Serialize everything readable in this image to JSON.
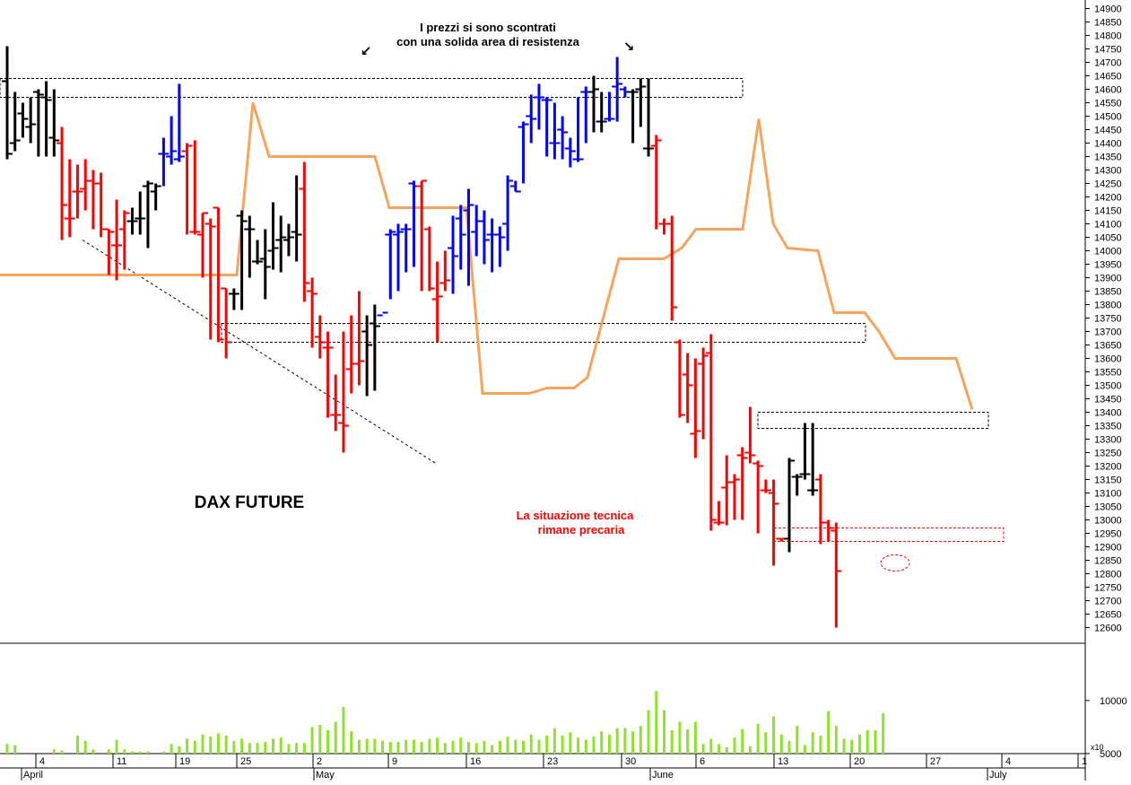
{
  "chart_data": {
    "type": "ohlc",
    "title": "DAX FUTURE",
    "annotations": {
      "resistance_line1": "I prezzi si sono scontrati",
      "resistance_line2": "con una solida area di resistenza",
      "situation_line1": "La situazione tecnica",
      "situation_line2": "rimane precaria"
    },
    "colors": {
      "up": "#0000ff",
      "down": "#ff0000",
      "neutral": "#000000",
      "line": "#f7a35c",
      "volume": "#8ee22b"
    },
    "y_axis": {
      "ylim": [
        12600,
        14900
      ],
      "ticks": [
        12600,
        12650,
        12700,
        12750,
        12800,
        12850,
        12900,
        12950,
        13000,
        13050,
        13100,
        13150,
        13200,
        13250,
        13300,
        13350,
        13400,
        13450,
        13500,
        13550,
        13600,
        13650,
        13700,
        13750,
        13800,
        13850,
        13900,
        13950,
        14000,
        14050,
        14100,
        14150,
        14200,
        14250,
        14300,
        14350,
        14400,
        14450,
        14500,
        14550,
        14600,
        14650,
        14700,
        14750,
        14800,
        14850,
        14900
      ]
    },
    "volume_axis": {
      "ticks": [
        5000,
        10000
      ],
      "multiplier_label": "x10"
    },
    "x_axis": {
      "day_ticks": [
        "4",
        "11",
        "19",
        "25",
        "2",
        "9",
        "16",
        "23",
        "30",
        "6",
        "13",
        "20",
        "27",
        "4",
        "1"
      ],
      "month_labels": [
        "April",
        "May",
        "June",
        "July"
      ]
    },
    "bars": [
      {
        "o": 14630,
        "h": 14760,
        "l": 14340,
        "c": 14360,
        "color": "neutral"
      },
      {
        "o": 14400,
        "h": 14590,
        "l": 14370,
        "c": 14410,
        "color": "neutral"
      },
      {
        "o": 14510,
        "h": 14550,
        "l": 14420,
        "c": 14490,
        "color": "neutral"
      },
      {
        "o": 14460,
        "h": 14570,
        "l": 14400,
        "c": 14470,
        "color": "neutral"
      },
      {
        "o": 14590,
        "h": 14600,
        "l": 14350,
        "c": 14580,
        "color": "neutral"
      },
      {
        "o": 14570,
        "h": 14630,
        "l": 14350,
        "c": 14560,
        "color": "neutral"
      },
      {
        "o": 14420,
        "h": 14600,
        "l": 14350,
        "c": 14410,
        "color": "neutral"
      },
      {
        "o": 14400,
        "h": 14460,
        "l": 14040,
        "c": 14170,
        "color": "down"
      },
      {
        "o": 14120,
        "h": 14340,
        "l": 14050,
        "c": 14120,
        "color": "down"
      },
      {
        "o": 14220,
        "h": 14320,
        "l": 14120,
        "c": 14220,
        "color": "down"
      },
      {
        "o": 14230,
        "h": 14340,
        "l": 14150,
        "c": 14260,
        "color": "down"
      },
      {
        "o": 14260,
        "h": 14300,
        "l": 14080,
        "c": 14250,
        "color": "down"
      },
      {
        "o": 14250,
        "h": 14290,
        "l": 14050,
        "c": 14080,
        "color": "down"
      },
      {
        "o": 14080,
        "h": 14080,
        "l": 13910,
        "c": 14070,
        "color": "down"
      },
      {
        "o": 14020,
        "h": 14190,
        "l": 13890,
        "c": 14020,
        "color": "down"
      },
      {
        "o": 14080,
        "h": 14150,
        "l": 13930,
        "c": 14140,
        "color": "down"
      },
      {
        "o": 14110,
        "h": 14160,
        "l": 14060,
        "c": 14110,
        "color": "neutral"
      },
      {
        "o": 14120,
        "h": 14220,
        "l": 14060,
        "c": 14120,
        "color": "neutral"
      },
      {
        "o": 14240,
        "h": 14260,
        "l": 14010,
        "c": 14250,
        "color": "neutral"
      },
      {
        "o": 14220,
        "h": 14250,
        "l": 14150,
        "c": 14240,
        "color": "neutral"
      },
      {
        "o": 14360,
        "h": 14420,
        "l": 14240,
        "c": 14360,
        "color": "up"
      },
      {
        "o": 14350,
        "h": 14500,
        "l": 14320,
        "c": 14370,
        "color": "up"
      },
      {
        "o": 14340,
        "h": 14620,
        "l": 14330,
        "c": 14350,
        "color": "up"
      },
      {
        "o": 14370,
        "h": 14400,
        "l": 14060,
        "c": 14390,
        "color": "down"
      },
      {
        "o": 14070,
        "h": 14410,
        "l": 14060,
        "c": 14070,
        "color": "down"
      },
      {
        "o": 14060,
        "h": 14140,
        "l": 13900,
        "c": 14140,
        "color": "down"
      },
      {
        "o": 14100,
        "h": 14120,
        "l": 13670,
        "c": 14090,
        "color": "down"
      },
      {
        "o": 14160,
        "h": 14160,
        "l": 13660,
        "c": 13670,
        "color": "down"
      },
      {
        "o": 13860,
        "h": 13860,
        "l": 13600,
        "c": 13660,
        "color": "down"
      },
      {
        "o": 13840,
        "h": 13860,
        "l": 13780,
        "c": 13840,
        "color": "neutral"
      },
      {
        "o": 14130,
        "h": 14150,
        "l": 13780,
        "c": 14110,
        "color": "neutral"
      },
      {
        "o": 14080,
        "h": 14130,
        "l": 13900,
        "c": 14080,
        "color": "neutral"
      },
      {
        "o": 13960,
        "h": 14040,
        "l": 13950,
        "c": 13960,
        "color": "neutral"
      },
      {
        "o": 13970,
        "h": 14080,
        "l": 13820,
        "c": 13940,
        "color": "neutral"
      },
      {
        "o": 14000,
        "h": 14180,
        "l": 13930,
        "c": 14010,
        "color": "neutral"
      },
      {
        "o": 14040,
        "h": 14130,
        "l": 13920,
        "c": 14050,
        "color": "neutral"
      },
      {
        "o": 14040,
        "h": 14100,
        "l": 13980,
        "c": 14050,
        "color": "neutral"
      },
      {
        "o": 14070,
        "h": 14280,
        "l": 13960,
        "c": 14060,
        "color": "neutral"
      },
      {
        "o": 14230,
        "h": 14330,
        "l": 13810,
        "c": 13880,
        "color": "down"
      },
      {
        "o": 13850,
        "h": 13900,
        "l": 13640,
        "c": 13840,
        "color": "down"
      },
      {
        "o": 13680,
        "h": 13760,
        "l": 13600,
        "c": 13660,
        "color": "down"
      },
      {
        "o": 13640,
        "h": 13700,
        "l": 13380,
        "c": 13640,
        "color": "down"
      },
      {
        "o": 13390,
        "h": 13540,
        "l": 13330,
        "c": 13390,
        "color": "down"
      },
      {
        "o": 13360,
        "h": 13700,
        "l": 13250,
        "c": 13350,
        "color": "down"
      },
      {
        "o": 13560,
        "h": 13760,
        "l": 13470,
        "c": 13580,
        "color": "down"
      },
      {
        "o": 13580,
        "h": 13850,
        "l": 13500,
        "c": 13590,
        "color": "down"
      },
      {
        "o": 13700,
        "h": 13760,
        "l": 13460,
        "c": 13650,
        "color": "neutral"
      },
      {
        "o": 13730,
        "h": 13800,
        "l": 13480,
        "c": 13720,
        "color": "neutral"
      },
      {
        "o": 13760,
        "h": 13760,
        "l": 13760,
        "c": 13770,
        "color": "up"
      },
      {
        "o": 14060,
        "h": 14080,
        "l": 13820,
        "c": 14070,
        "color": "up"
      },
      {
        "o": 14060,
        "h": 14100,
        "l": 13850,
        "c": 14070,
        "color": "up"
      },
      {
        "o": 14080,
        "h": 14100,
        "l": 13920,
        "c": 14080,
        "color": "up"
      },
      {
        "o": 14250,
        "h": 14260,
        "l": 13940,
        "c": 14240,
        "color": "up"
      },
      {
        "o": 14240,
        "h": 14260,
        "l": 13850,
        "c": 14260,
        "color": "down"
      },
      {
        "o": 14080,
        "h": 14090,
        "l": 13850,
        "c": 13860,
        "color": "down"
      },
      {
        "o": 13820,
        "h": 13960,
        "l": 13660,
        "c": 13830,
        "color": "down"
      },
      {
        "o": 13880,
        "h": 14000,
        "l": 13850,
        "c": 13890,
        "color": "down"
      },
      {
        "o": 14010,
        "h": 14130,
        "l": 13840,
        "c": 13980,
        "color": "up"
      },
      {
        "o": 14120,
        "h": 14170,
        "l": 13930,
        "c": 14060,
        "color": "up"
      },
      {
        "o": 14150,
        "h": 14230,
        "l": 13870,
        "c": 14170,
        "color": "up"
      },
      {
        "o": 14070,
        "h": 14170,
        "l": 13980,
        "c": 14110,
        "color": "up"
      },
      {
        "o": 14110,
        "h": 14150,
        "l": 13950,
        "c": 14040,
        "color": "up"
      },
      {
        "o": 14060,
        "h": 14120,
        "l": 13920,
        "c": 14060,
        "color": "up"
      },
      {
        "o": 14060,
        "h": 14090,
        "l": 13940,
        "c": 14050,
        "color": "up"
      },
      {
        "o": 14100,
        "h": 14280,
        "l": 14000,
        "c": 14260,
        "color": "up"
      },
      {
        "o": 14240,
        "h": 14260,
        "l": 14220,
        "c": 14220,
        "color": "up"
      },
      {
        "o": 14460,
        "h": 14480,
        "l": 14250,
        "c": 14470,
        "color": "up"
      },
      {
        "o": 14500,
        "h": 14580,
        "l": 14400,
        "c": 14490,
        "color": "up"
      },
      {
        "o": 14570,
        "h": 14620,
        "l": 14450,
        "c": 14570,
        "color": "up"
      },
      {
        "o": 14560,
        "h": 14570,
        "l": 14350,
        "c": 14560,
        "color": "up"
      },
      {
        "o": 14400,
        "h": 14550,
        "l": 14340,
        "c": 14400,
        "color": "up"
      },
      {
        "o": 14450,
        "h": 14500,
        "l": 14340,
        "c": 14440,
        "color": "up"
      },
      {
        "o": 14380,
        "h": 14420,
        "l": 14310,
        "c": 14370,
        "color": "up"
      },
      {
        "o": 14340,
        "h": 14570,
        "l": 14330,
        "c": 14340,
        "color": "up"
      },
      {
        "o": 14590,
        "h": 14610,
        "l": 14400,
        "c": 14590,
        "color": "up"
      },
      {
        "o": 14590,
        "h": 14650,
        "l": 14440,
        "c": 14600,
        "color": "neutral"
      },
      {
        "o": 14480,
        "h": 14590,
        "l": 14440,
        "c": 14480,
        "color": "neutral"
      },
      {
        "o": 14490,
        "h": 14590,
        "l": 14480,
        "c": 14490,
        "color": "up"
      },
      {
        "o": 14610,
        "h": 14720,
        "l": 14480,
        "c": 14620,
        "color": "up"
      },
      {
        "o": 14600,
        "h": 14610,
        "l": 14570,
        "c": 14590,
        "color": "up"
      },
      {
        "o": 14590,
        "h": 14600,
        "l": 14400,
        "c": 14590,
        "color": "neutral"
      },
      {
        "o": 14600,
        "h": 14640,
        "l": 14460,
        "c": 14610,
        "color": "neutral"
      },
      {
        "o": 14380,
        "h": 14640,
        "l": 14350,
        "c": 14380,
        "color": "neutral"
      },
      {
        "o": 14390,
        "h": 14430,
        "l": 14080,
        "c": 14410,
        "color": "down"
      },
      {
        "o": 14100,
        "h": 14120,
        "l": 14060,
        "c": 14100,
        "color": "down"
      },
      {
        "o": 14100,
        "h": 14130,
        "l": 13740,
        "c": 13790,
        "color": "down"
      },
      {
        "o": 13660,
        "h": 13670,
        "l": 13380,
        "c": 13390,
        "color": "down"
      },
      {
        "o": 13540,
        "h": 13620,
        "l": 13360,
        "c": 13500,
        "color": "down"
      },
      {
        "o": 13320,
        "h": 13600,
        "l": 13230,
        "c": 13330,
        "color": "down"
      },
      {
        "o": 13580,
        "h": 13640,
        "l": 13300,
        "c": 13610,
        "color": "down"
      },
      {
        "o": 13620,
        "h": 13690,
        "l": 12960,
        "c": 13000,
        "color": "down"
      },
      {
        "o": 12990,
        "h": 13070,
        "l": 12980,
        "c": 12990,
        "color": "down"
      },
      {
        "o": 13120,
        "h": 13240,
        "l": 12980,
        "c": 13140,
        "color": "down"
      },
      {
        "o": 13140,
        "h": 13170,
        "l": 13000,
        "c": 13150,
        "color": "down"
      },
      {
        "o": 13240,
        "h": 13270,
        "l": 13000,
        "c": 13230,
        "color": "down"
      },
      {
        "o": 13250,
        "h": 13420,
        "l": 13210,
        "c": 13240,
        "color": "down"
      },
      {
        "o": 13210,
        "h": 13220,
        "l": 12950,
        "c": 13200,
        "color": "down"
      },
      {
        "o": 13110,
        "h": 13150,
        "l": 13100,
        "c": 13110,
        "color": "down"
      },
      {
        "o": 13100,
        "h": 13150,
        "l": 12830,
        "c": 13060,
        "color": "down"
      },
      {
        "o": 12930,
        "h": 12930,
        "l": 12920,
        "c": 12930,
        "color": "down"
      },
      {
        "o": 12930,
        "h": 13230,
        "l": 12880,
        "c": 13220,
        "color": "neutral"
      },
      {
        "o": 13160,
        "h": 13170,
        "l": 13090,
        "c": 13160,
        "color": "neutral"
      },
      {
        "o": 13170,
        "h": 13360,
        "l": 13150,
        "c": 13170,
        "color": "neutral"
      },
      {
        "o": 13110,
        "h": 13360,
        "l": 13090,
        "c": 13110,
        "color": "neutral"
      },
      {
        "o": 13150,
        "h": 13170,
        "l": 12910,
        "c": 12990,
        "color": "down"
      },
      {
        "o": 12990,
        "h": 13000,
        "l": 12920,
        "c": 12970,
        "color": "down"
      },
      {
        "o": 12960,
        "h": 12990,
        "l": 12600,
        "c": 12810,
        "color": "down"
      }
    ],
    "line_series": [
      [
        0,
        13910
      ],
      [
        264,
        13910
      ],
      [
        282,
        14550
      ],
      [
        300,
        14350
      ],
      [
        418,
        14350
      ],
      [
        434,
        14160
      ],
      [
        520,
        14160
      ],
      [
        538,
        13470
      ],
      [
        590,
        13470
      ],
      [
        610,
        13490
      ],
      [
        640,
        13490
      ],
      [
        655,
        13530
      ],
      [
        690,
        13970
      ],
      [
        740,
        13970
      ],
      [
        760,
        14010
      ],
      [
        776,
        14080
      ],
      [
        828,
        14080
      ],
      [
        846,
        14490
      ],
      [
        862,
        14100
      ],
      [
        878,
        14010
      ],
      [
        912,
        14000
      ],
      [
        930,
        13770
      ],
      [
        964,
        13770
      ],
      [
        980,
        13700
      ],
      [
        998,
        13600
      ],
      [
        1066,
        13600
      ],
      [
        1084,
        13410
      ]
    ],
    "volume": [
      5900,
      5800,
      4900,
      4500,
      4400,
      4600,
      5400,
      5300,
      4700,
      6700,
      6200,
      5400,
      5000,
      5400,
      6300,
      5400,
      5200,
      5200,
      5200,
      5000,
      5200,
      5900,
      5700,
      6400,
      6200,
      6800,
      6600,
      6900,
      6700,
      6200,
      6400,
      6000,
      6000,
      6100,
      6400,
      6500,
      5900,
      6000,
      6000,
      7500,
      7700,
      7200,
      8000,
      9400,
      7100,
      6300,
      6400,
      6400,
      6200,
      6100,
      6100,
      6300,
      6300,
      6100,
      6400,
      6500,
      6000,
      6200,
      6500,
      6100,
      6000,
      6200,
      5800,
      6200,
      6600,
      6300,
      6200,
      6800,
      6300,
      6700,
      7400,
      6700,
      7000,
      6500,
      6300,
      6600,
      7100,
      6800,
      7400,
      7400,
      7100,
      7600,
      9100,
      10900,
      9100,
      7200,
      8000,
      7300,
      8000,
      5900,
      6400,
      5900,
      5600,
      6500,
      7300,
      5700,
      7800,
      7000,
      8500,
      6800,
      6200,
      7600,
      5800,
      7000,
      6700,
      9000,
      7600,
      6400,
      6300,
      6800,
      7200,
      7200,
      8800
    ]
  }
}
